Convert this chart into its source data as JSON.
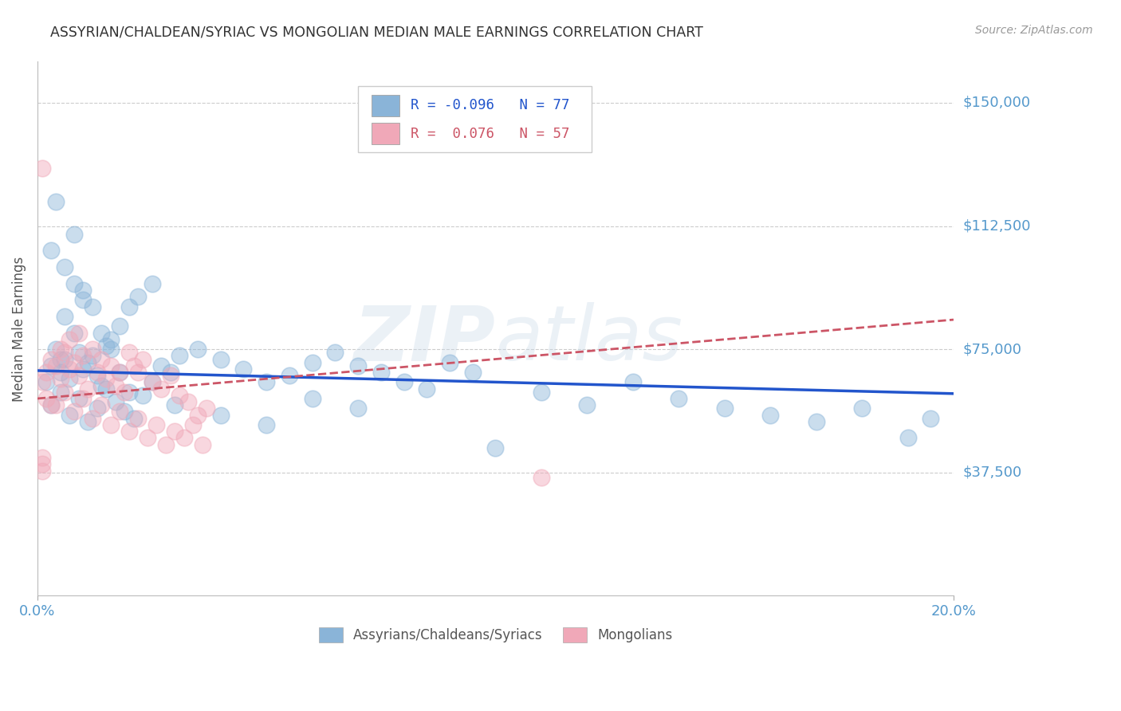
{
  "title": "ASSYRIAN/CHALDEAN/SYRIAC VS MONGOLIAN MEDIAN MALE EARNINGS CORRELATION CHART",
  "source": "Source: ZipAtlas.com",
  "ylabel": "Median Male Earnings",
  "xlim": [
    0.0,
    0.2
  ],
  "ylim": [
    0,
    162500
  ],
  "yticks": [
    37500,
    75000,
    112500,
    150000
  ],
  "ytick_labels": [
    "$37,500",
    "$75,000",
    "$112,500",
    "$150,000"
  ],
  "background_color": "#ffffff",
  "grid_color": "#cccccc",
  "blue_color": "#8ab4d8",
  "pink_color": "#f0a8b8",
  "blue_line_color": "#2255cc",
  "pink_line_color": "#cc5566",
  "axis_label_color": "#5599cc",
  "title_color": "#333333",
  "R_blue": -0.096,
  "N_blue": 77,
  "R_pink": 0.076,
  "N_pink": 57,
  "blue_trend_x": [
    0.0,
    0.2
  ],
  "blue_trend_y": [
    68500,
    61500
  ],
  "pink_trend_x": [
    0.0,
    0.2
  ],
  "pink_trend_y": [
    60000,
    84000
  ],
  "blue_scatter_x": [
    0.002,
    0.003,
    0.004,
    0.005,
    0.006,
    0.007,
    0.008,
    0.009,
    0.01,
    0.011,
    0.012,
    0.013,
    0.014,
    0.015,
    0.016,
    0.018,
    0.02,
    0.022,
    0.025,
    0.003,
    0.005,
    0.007,
    0.009,
    0.011,
    0.013,
    0.015,
    0.017,
    0.019,
    0.021,
    0.023,
    0.025,
    0.027,
    0.029,
    0.031,
    0.035,
    0.04,
    0.045,
    0.05,
    0.055,
    0.06,
    0.065,
    0.07,
    0.075,
    0.08,
    0.085,
    0.09,
    0.095,
    0.1,
    0.11,
    0.12,
    0.13,
    0.14,
    0.15,
    0.16,
    0.17,
    0.18,
    0.005,
    0.006,
    0.008,
    0.01,
    0.012,
    0.014,
    0.016,
    0.018,
    0.02,
    0.03,
    0.04,
    0.05,
    0.06,
    0.07,
    0.19,
    0.195,
    0.003,
    0.004,
    0.006,
    0.008,
    0.01
  ],
  "blue_scatter_y": [
    65000,
    70000,
    75000,
    68000,
    72000,
    66000,
    80000,
    74000,
    69000,
    71000,
    73000,
    67000,
    64000,
    76000,
    78000,
    82000,
    88000,
    91000,
    95000,
    58000,
    62000,
    55000,
    60000,
    53000,
    57000,
    63000,
    59000,
    56000,
    54000,
    61000,
    65000,
    70000,
    68000,
    73000,
    75000,
    72000,
    69000,
    65000,
    67000,
    71000,
    74000,
    70000,
    68000,
    65000,
    63000,
    71000,
    68000,
    45000,
    62000,
    58000,
    65000,
    60000,
    57000,
    55000,
    53000,
    57000,
    72000,
    85000,
    110000,
    93000,
    88000,
    80000,
    75000,
    68000,
    62000,
    58000,
    55000,
    52000,
    60000,
    57000,
    48000,
    54000,
    105000,
    120000,
    100000,
    95000,
    90000
  ],
  "pink_scatter_x": [
    0.001,
    0.002,
    0.003,
    0.004,
    0.005,
    0.006,
    0.007,
    0.008,
    0.009,
    0.01,
    0.011,
    0.012,
    0.013,
    0.014,
    0.015,
    0.016,
    0.017,
    0.018,
    0.019,
    0.02,
    0.021,
    0.022,
    0.023,
    0.025,
    0.027,
    0.029,
    0.031,
    0.033,
    0.035,
    0.037,
    0.002,
    0.004,
    0.006,
    0.008,
    0.01,
    0.012,
    0.014,
    0.016,
    0.018,
    0.02,
    0.022,
    0.024,
    0.026,
    0.028,
    0.03,
    0.032,
    0.034,
    0.036,
    0.001,
    0.003,
    0.005,
    0.007,
    0.009,
    0.001,
    0.001,
    0.001,
    0.11
  ],
  "pink_scatter_y": [
    65000,
    68000,
    72000,
    70000,
    66000,
    74000,
    69000,
    71000,
    67000,
    73000,
    63000,
    75000,
    68000,
    72000,
    66000,
    70000,
    64000,
    68000,
    62000,
    74000,
    70000,
    68000,
    72000,
    65000,
    63000,
    67000,
    61000,
    59000,
    55000,
    57000,
    60000,
    58000,
    62000,
    56000,
    60000,
    54000,
    58000,
    52000,
    56000,
    50000,
    54000,
    48000,
    52000,
    46000,
    50000,
    48000,
    52000,
    46000,
    130000,
    58000,
    75000,
    78000,
    80000,
    40000,
    42000,
    38000,
    36000
  ]
}
